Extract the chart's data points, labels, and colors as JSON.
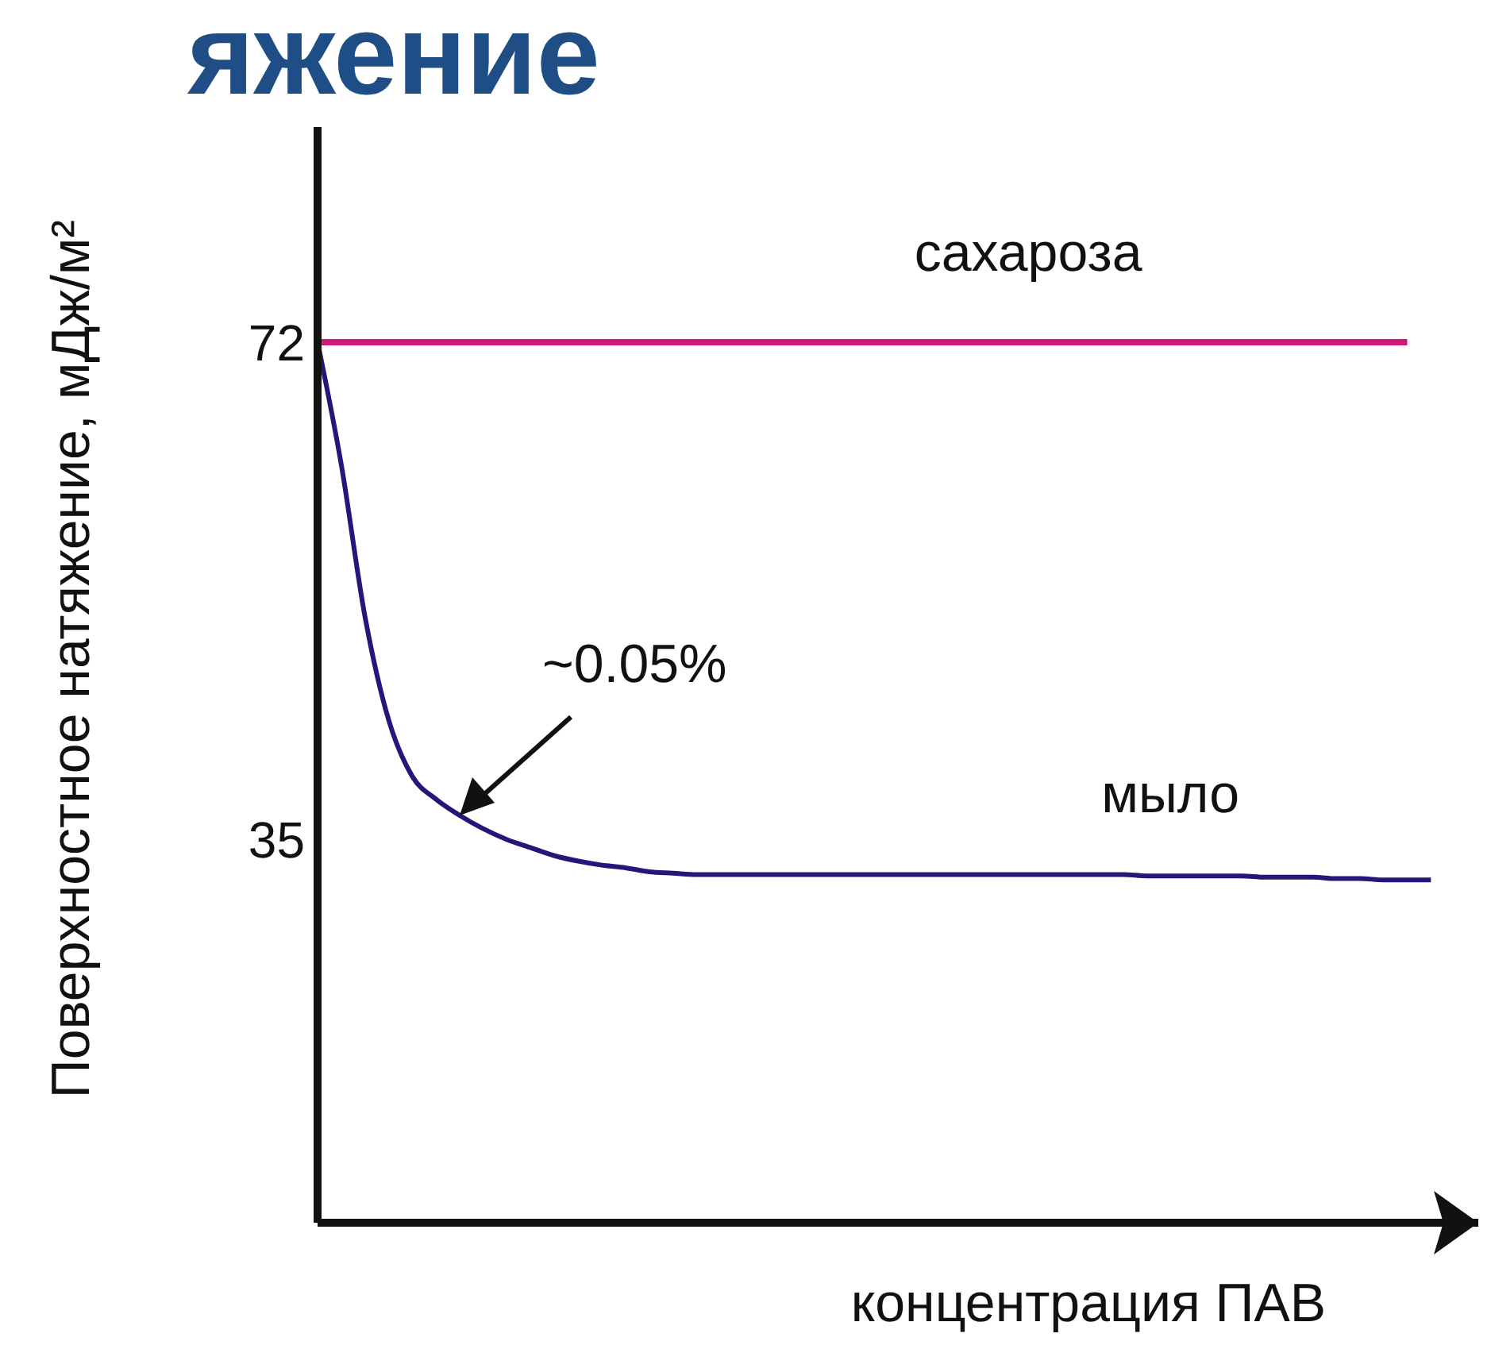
{
  "chart_data": {
    "type": "line",
    "title": "яжение",
    "xlabel": "концентрация ПАВ",
    "ylabel": "Поверхностное натяжение, мДж/м²",
    "categories": [
      null,
      null,
      null,
      null,
      null,
      null,
      null,
      null,
      null,
      null,
      null,
      null,
      null,
      null,
      null,
      null,
      null,
      null,
      null,
      null,
      null,
      null,
      null,
      null,
      null,
      null,
      null,
      null,
      null,
      null,
      null,
      null,
      null,
      null,
      null,
      null,
      null,
      null,
      null,
      null,
      null,
      null,
      null,
      null,
      null,
      null,
      null,
      null
    ],
    "series": [
      {
        "name": "сахароза",
        "color": "#d4177c",
        "values": [
          72,
          72,
          72,
          72,
          72,
          72,
          72,
          72,
          72,
          72,
          72,
          72,
          72,
          72,
          72,
          72,
          72,
          72,
          72,
          72,
          72,
          72,
          72,
          72,
          72,
          72,
          72,
          72,
          72,
          72,
          72,
          72,
          72,
          72,
          72,
          72,
          72,
          72,
          72,
          72,
          72,
          72,
          72,
          72,
          72,
          72,
          72,
          null
        ]
      },
      {
        "name": "мыло",
        "color": "#22187a",
        "values": [
          72,
          62.9,
          51.6,
          43.9,
          39.7,
          38.0,
          36.8,
          35.8,
          35.0,
          34.4,
          33.8,
          33.4,
          33.1,
          32.9,
          32.6,
          32.5,
          32.4,
          32.4,
          32.4,
          32.4,
          32.4,
          32.4,
          32.4,
          32.4,
          32.4,
          32.4,
          32.4,
          32.4,
          32.4,
          32.4,
          32.4,
          32.4,
          32.4,
          32.4,
          32.4,
          32.3,
          32.3,
          32.3,
          32.3,
          32.3,
          32.2,
          32.2,
          32.2,
          32.1,
          32.1,
          32.0,
          32.0,
          32.0
        ]
      }
    ],
    "ylim": [
      6.5,
      88
    ],
    "yticks": [
      72,
      35
    ],
    "tick_labels": "y",
    "marker": "none",
    "line_style": "solid",
    "annotations": [
      "~0.05%"
    ]
  }
}
